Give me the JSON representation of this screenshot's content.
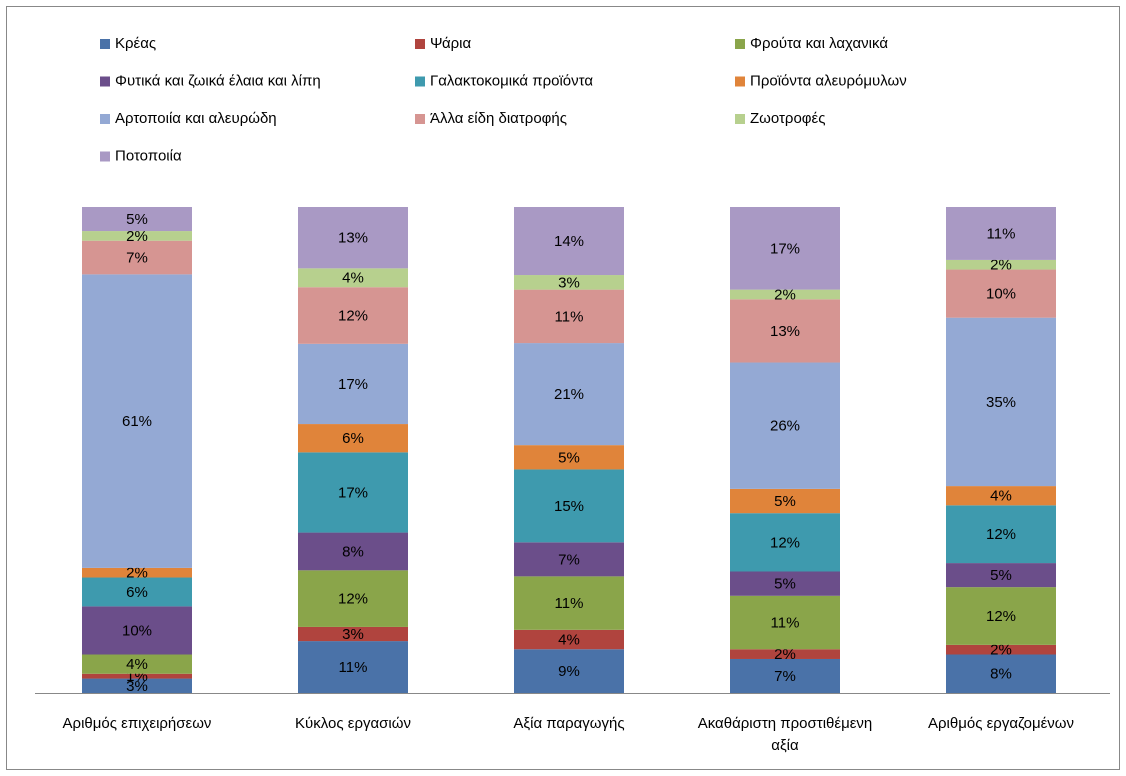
{
  "chart_data": {
    "type": "bar",
    "stacking": "percent",
    "categories": [
      "Αριθμός επιχειρήσεων",
      "Κύκλος εργασιών",
      "Αξία παραγωγής",
      "Ακαθάριστη προστιθέμενη αξία",
      "Αριθμός εργαζομένων"
    ],
    "series": [
      {
        "name": "Κρέας",
        "color": "#4a72a8",
        "values": [
          3,
          11,
          9,
          7,
          8
        ],
        "value_labels": [
          "3%",
          "11%",
          "9%",
          "7%",
          "8%"
        ]
      },
      {
        "name": "Ψάρια",
        "color": "#b0443e",
        "values": [
          1,
          3,
          4,
          2,
          2
        ],
        "value_labels": [
          "1%",
          "3%",
          "4%",
          "2%",
          "2%"
        ]
      },
      {
        "name": "Φρούτα και λαχανικά",
        "color": "#8aa54a",
        "values": [
          4,
          12,
          11,
          11,
          12
        ],
        "value_labels": [
          "4%",
          "12%",
          "11%",
          "11%",
          "12%"
        ]
      },
      {
        "name": "Φυτικά και ζωικά έλαια και λίπη",
        "color": "#6b4e8a",
        "values": [
          10,
          8,
          7,
          5,
          5
        ],
        "value_labels": [
          "10%",
          "8%",
          "7%",
          "5%",
          "5%"
        ]
      },
      {
        "name": "Γαλακτοκομικά προϊόντα",
        "color": "#3e9aae",
        "values": [
          6,
          17,
          15,
          12,
          12
        ],
        "value_labels": [
          "6%",
          "17%",
          "15%",
          "12%",
          "12%"
        ]
      },
      {
        "name": "Προϊόντα αλευρόμυλων",
        "color": "#e0843a",
        "values": [
          2,
          6,
          5,
          5,
          4
        ],
        "value_labels": [
          "2%",
          "6%",
          "5%",
          "5%",
          "4%"
        ]
      },
      {
        "name": "Αρτοποιία και αλευρώδη",
        "color": "#94a9d4",
        "values": [
          61,
          17,
          21,
          26,
          35
        ],
        "value_labels": [
          "61%",
          "17%",
          "21%",
          "26%",
          "35%"
        ]
      },
      {
        "name": "Άλλα είδη διατροφής",
        "color": "#d69592",
        "values": [
          7,
          12,
          11,
          13,
          10
        ],
        "value_labels": [
          "7%",
          "12%",
          "11%",
          "13%",
          "10%"
        ]
      },
      {
        "name": "Ζωοτροφές",
        "color": "#b7d08e",
        "values": [
          2,
          4,
          3,
          2,
          2
        ],
        "value_labels": [
          "2%",
          "4%",
          "3%",
          "2%",
          "2%"
        ]
      },
      {
        "name": "Ποτοποιία",
        "color": "#a999c4",
        "values": [
          5,
          13,
          14,
          17,
          11
        ],
        "value_labels": [
          "5%",
          "13%",
          "14%",
          "17%",
          "11%"
        ]
      }
    ]
  }
}
